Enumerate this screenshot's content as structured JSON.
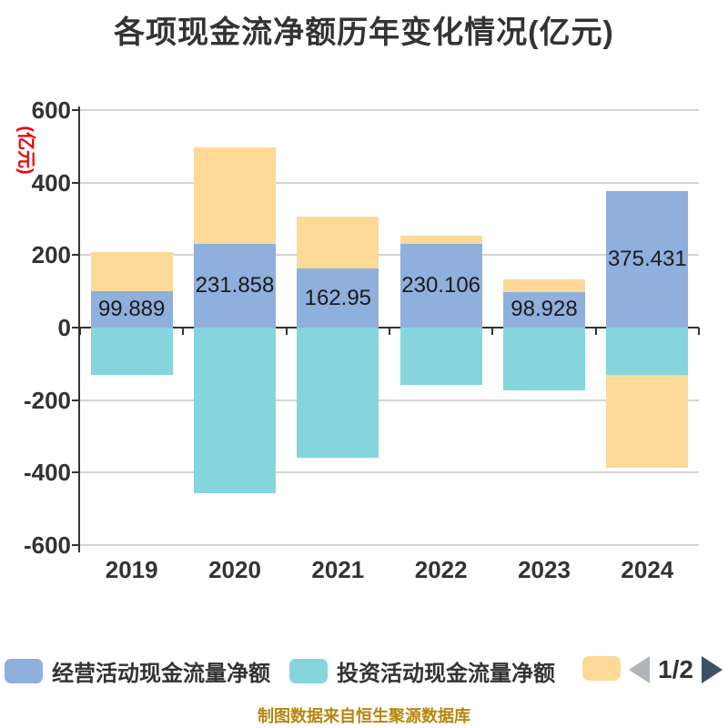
{
  "title": "各项现金流净额历年变化情况(亿元)",
  "y_axis_name": "(亿元)",
  "chart_data": {
    "type": "bar",
    "stacked": true,
    "title": "各项现金流净额历年变化情况(亿元)",
    "xlabel": "",
    "ylabel": "(亿元)",
    "categories": [
      "2019",
      "2020",
      "2021",
      "2022",
      "2023",
      "2024"
    ],
    "series": [
      {
        "name": "经营活动现金流量净额",
        "color": "#8fafdc",
        "values": [
          99.889,
          231.858,
          162.95,
          230.106,
          98.928,
          375.431
        ]
      },
      {
        "name": "投资活动现金流量净额",
        "color": "#85d5dc",
        "values": [
          -130,
          -456,
          -359,
          -159,
          -172,
          -130
        ]
      },
      {
        "name": "",
        "color": "#fdd998",
        "values": [
          108,
          265,
          143,
          24,
          34,
          -257
        ]
      }
    ],
    "labeled_series": 0,
    "data_labels": [
      "99.889",
      "231.858",
      "162.95",
      "230.106",
      "98.928",
      "375.431"
    ],
    "ylim": [
      -600,
      600
    ],
    "yticks": [
      600,
      400,
      200,
      0,
      -200,
      -400,
      -600
    ],
    "grid": true,
    "legend_position": "bottom"
  },
  "legend": {
    "items": [
      {
        "label": "经营活动现金流量净额",
        "color": "#8fafdc"
      },
      {
        "label": "投资活动现金流量净额",
        "color": "#85d5dc"
      },
      {
        "label": "",
        "color": "#fdd998"
      }
    ],
    "pager": {
      "current": "1/2",
      "prev_color": "#b0b5bb",
      "next_color": "#3c5166"
    }
  },
  "footer": {
    "text": "制图数据来自恒生聚源数据库",
    "color": "#b8860b"
  },
  "colors": {
    "title": "#333333",
    "axis": "#333333",
    "grid": "#d4d4d4",
    "tick_label": "#333333",
    "data_label": "#1a1a1a",
    "y_axis_name": "#ee0000",
    "background": "#ffffff"
  }
}
